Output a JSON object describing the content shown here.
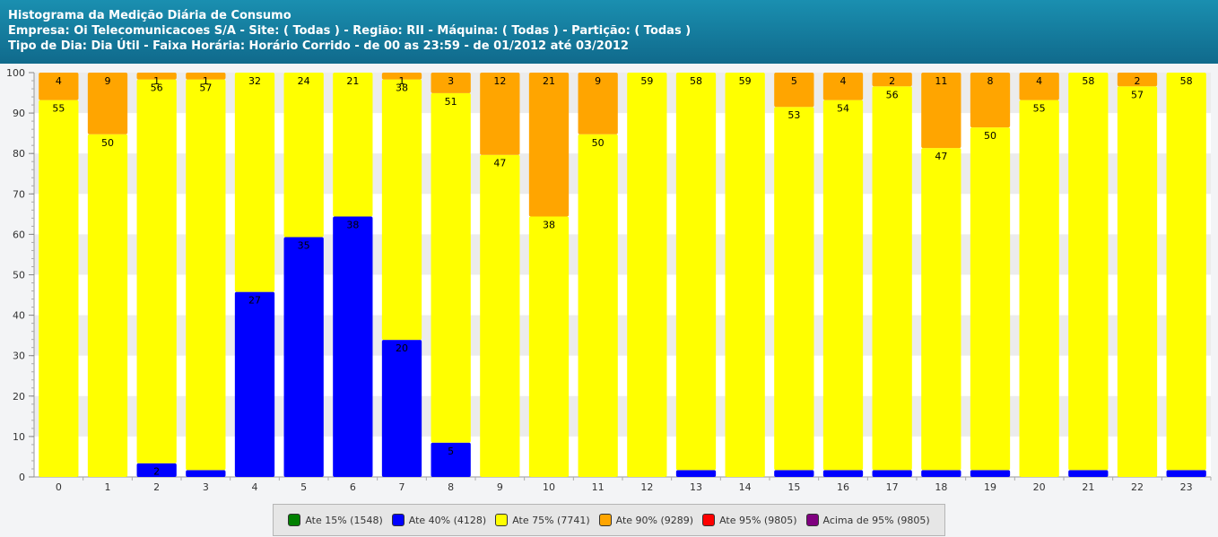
{
  "header": {
    "line1": "Histograma da Medição Diária de Consumo",
    "line2": "Empresa: Oi Telecomunicacoes S/A - Site: ( Todas ) - Região: RII - Máquina: ( Todas ) - Partição: ( Todas )",
    "line3": "Tipo de Dia: Dia Útil - Faixa Horária: Horário Corrido - de 00 as 23:59 - de 01/2012 até 03/2012"
  },
  "legend": [
    {
      "label": "Ate 15% (1548)",
      "color": "#008000"
    },
    {
      "label": "Ate 40% (4128)",
      "color": "#0000ff"
    },
    {
      "label": "Ate 75% (7741)",
      "color": "#ffff00"
    },
    {
      "label": "Ate 90% (9289)",
      "color": "#ffa500"
    },
    {
      "label": "Ate 95% (9805)",
      "color": "#ff0000"
    },
    {
      "label": "Acima de 95% (9805)",
      "color": "#800080"
    }
  ],
  "chart_data": {
    "type": "bar",
    "stacked": true,
    "percent_stacked": true,
    "categories": [
      "0",
      "1",
      "2",
      "3",
      "4",
      "5",
      "6",
      "7",
      "8",
      "9",
      "10",
      "11",
      "12",
      "13",
      "14",
      "15",
      "16",
      "17",
      "18",
      "19",
      "20",
      "21",
      "22",
      "23"
    ],
    "ylim": [
      0,
      100
    ],
    "yticks": [
      0,
      10,
      20,
      30,
      40,
      50,
      60,
      70,
      80,
      90,
      100
    ],
    "grid": "horizontal-bands",
    "series": [
      {
        "name": "Ate 40% (4128)",
        "color": "#0000ff",
        "values": [
          0,
          0,
          2,
          1,
          27,
          35,
          38,
          20,
          5,
          0,
          0,
          0,
          0,
          1,
          0,
          1,
          1,
          1,
          1,
          1,
          0,
          1,
          0,
          1
        ],
        "labels": [
          "",
          "",
          "2",
          "",
          "27",
          "35",
          "38",
          "20",
          "5",
          "",
          "",
          "",
          "",
          "",
          "",
          "",
          "",
          "",
          "",
          "",
          "",
          "",
          "",
          ""
        ]
      },
      {
        "name": "Ate 75% (7741)",
        "color": "#ffff00",
        "values": [
          55,
          50,
          56,
          57,
          32,
          24,
          21,
          38,
          51,
          47,
          38,
          50,
          59,
          58,
          59,
          53,
          54,
          56,
          47,
          50,
          55,
          58,
          57,
          58
        ],
        "labels": [
          "55",
          "50",
          "56",
          "57",
          "32",
          "24",
          "21",
          "38",
          "51",
          "47",
          "38",
          "50",
          "59",
          "58",
          "59",
          "53",
          "54",
          "56",
          "47",
          "50",
          "55",
          "58",
          "57",
          "58"
        ]
      },
      {
        "name": "Ate 90% (9289)",
        "color": "#ffa500",
        "values": [
          4,
          9,
          1,
          1,
          0,
          0,
          0,
          1,
          3,
          12,
          21,
          9,
          0,
          0,
          0,
          5,
          4,
          2,
          11,
          8,
          4,
          0,
          2,
          0
        ],
        "labels": [
          "4",
          "9",
          "1",
          "1",
          "",
          "",
          "",
          "1",
          "3",
          "12",
          "21",
          "9",
          "",
          "",
          "",
          "5",
          "4",
          "2",
          "11",
          "8",
          "4",
          "",
          "2",
          ""
        ]
      }
    ]
  }
}
